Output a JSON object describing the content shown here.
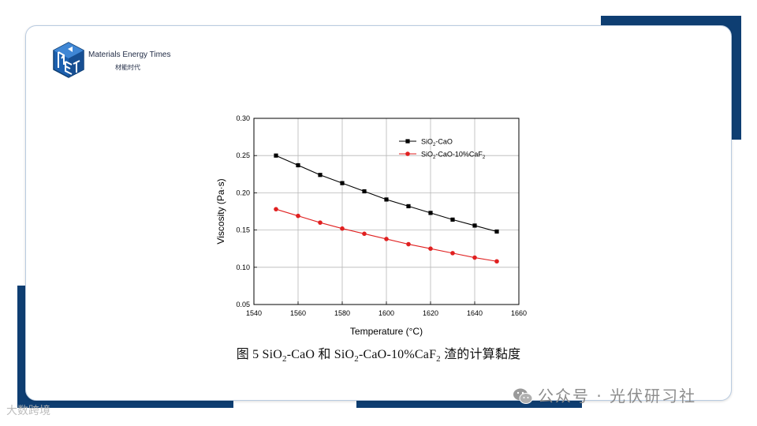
{
  "brand": {
    "name": "Materials Energy Times",
    "subtitle": "材能时代"
  },
  "colors": {
    "accent": "#0e3e72",
    "series_black": "#000000",
    "series_red": "#e02020"
  },
  "caption": {
    "prefix": "图 5 SiO",
    "sub1": "2",
    "mid": "-CaO 和  SiO",
    "sub2": "2",
    "mid2": "-CaO-10%CaF",
    "sub3": "2",
    "suffix": " 渣的计算黏度"
  },
  "watermarks": {
    "left": "大数跨境",
    "right": "公众号 · 光伏研习社",
    "right_icon": "wechat-icon"
  },
  "chart_data": {
    "type": "line",
    "xlabel": "Temperature (°C)",
    "ylabel": "Viscosity (Pa·s)",
    "xlim": [
      1540,
      1660
    ],
    "ylim": [
      0.05,
      0.3
    ],
    "xticks": [
      1540,
      1560,
      1580,
      1600,
      1620,
      1640,
      1660
    ],
    "yticks": [
      0.05,
      0.1,
      0.15,
      0.2,
      0.25,
      0.3
    ],
    "xtick_labels": [
      "1540",
      "1560",
      "1580",
      "1600",
      "1620",
      "1640",
      "1660"
    ],
    "ytick_labels": [
      "0.05",
      "0.10",
      "0.15",
      "0.20",
      "0.25",
      "0.30"
    ],
    "grid": true,
    "legend_placement": "top-right",
    "x": [
      1550,
      1560,
      1570,
      1580,
      1590,
      1600,
      1610,
      1620,
      1630,
      1640,
      1650
    ],
    "series": [
      {
        "legend_main": "SiO",
        "legend_sub": "2",
        "legend_rest": "-CaO",
        "legend_sub2": "",
        "marker": "square",
        "color": "#000000",
        "values": [
          0.25,
          0.237,
          0.224,
          0.213,
          0.202,
          0.191,
          0.182,
          0.173,
          0.164,
          0.156,
          0.148
        ]
      },
      {
        "legend_main": "SiO",
        "legend_sub": "2",
        "legend_rest": "-CaO-10%CaF",
        "legend_sub2": "2",
        "marker": "circle",
        "color": "#e02020",
        "values": [
          0.178,
          0.169,
          0.16,
          0.152,
          0.145,
          0.138,
          0.131,
          0.125,
          0.119,
          0.113,
          0.108
        ]
      }
    ]
  }
}
